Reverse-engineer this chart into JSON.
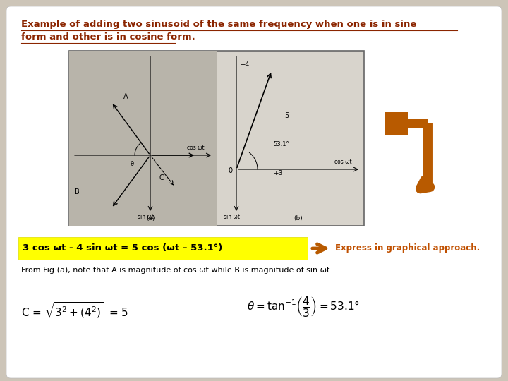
{
  "bg_color": "#cdc5b8",
  "card_bg": "#ffffff",
  "title_line1": "Example of adding two sinusoid of the same frequency when one is in sine",
  "title_line2": "form and other is in cosine form.",
  "title_color": "#8b2500",
  "equation_text": "3 cos ωt - 4 sin ωt = 5 cos (ωt – 53.1°)",
  "equation_bg": "#ffff00",
  "arrow_color": "#b85a00",
  "express_text": "Express in graphical approach.",
  "express_color": "#c05000",
  "from_fig_text": "From Fig.(a), note that A is magnitude of cos ωt while B is magnitude of sin ωt",
  "img_bg_light": "#d8d4cc",
  "img_bg_dark": "#b8b4aa",
  "img_border": "#666666"
}
